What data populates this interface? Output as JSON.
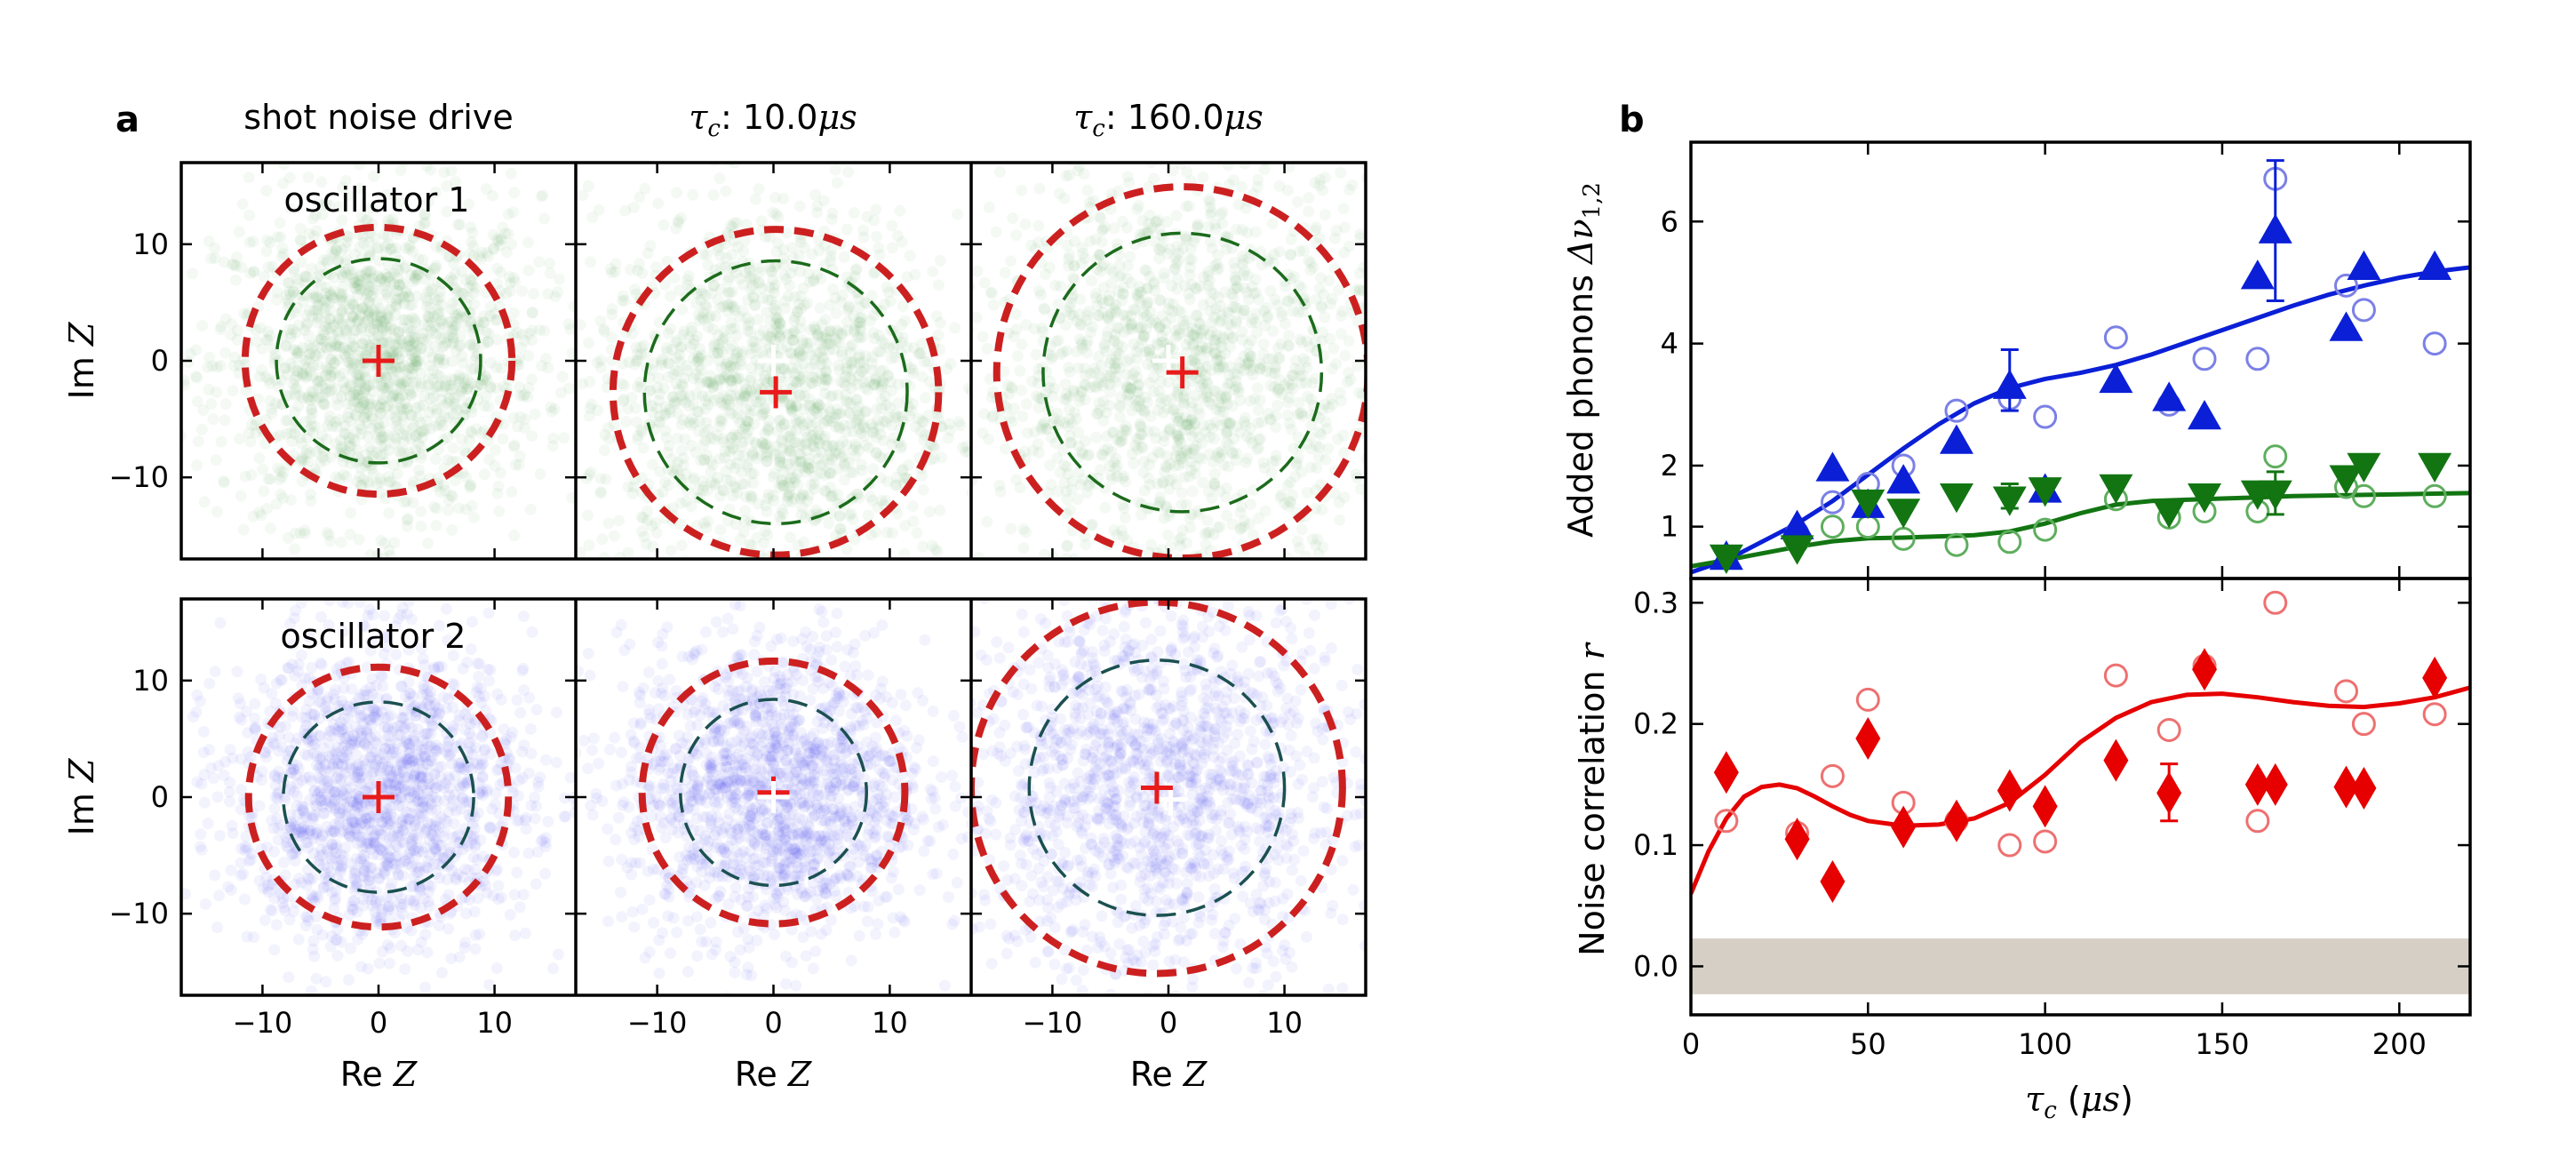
{
  "chart_data": [
    {
      "panel": "a",
      "type": "scatter",
      "title_row": [
        {
          "plain": "shot noise drive"
        },
        {
          "sym": "τ",
          "sub": "c",
          "rest": ": 10.0",
          "unit": "μs"
        },
        {
          "sym": "τ",
          "sub": "c",
          "rest": ": 160.0",
          "unit": "μs"
        }
      ],
      "row_labels": [
        "oscillator 1",
        "oscillator 2"
      ],
      "xlabel": {
        "plain": "Re ",
        "math": "Z"
      },
      "ylabel": {
        "plain": "Im ",
        "math": "Z"
      },
      "xlim": [
        -17,
        17
      ],
      "ylim": [
        -17,
        17
      ],
      "xticks": [
        -10,
        0,
        10
      ],
      "yticks": [
        -10,
        0,
        10
      ],
      "tick_labels": [
        "−10",
        "0",
        "10"
      ],
      "point_colors": [
        "#2e8b2e",
        "#3232ee"
      ],
      "circle_colors": {
        "outer": "#cc2020",
        "inner_row1": "#1b6b1b",
        "inner_row2": "#1b5050"
      },
      "subplots": [
        {
          "row": 0,
          "col": 0,
          "outer_r": 11.5,
          "inner_r": 8.8,
          "ref_center": [
            0,
            0
          ],
          "mean_center": [
            0,
            0
          ],
          "spread": 7.0
        },
        {
          "row": 0,
          "col": 1,
          "outer_r": 14.0,
          "inner_r": 11.3,
          "ref_center": [
            0,
            0
          ],
          "mean_center": [
            0.2,
            -2.7
          ],
          "spread": 8.0
        },
        {
          "row": 0,
          "col": 2,
          "outer_r": 16.0,
          "inner_r": 12.0,
          "ref_center": [
            0,
            0
          ],
          "mean_center": [
            1.2,
            -1.0
          ],
          "spread": 9.0
        },
        {
          "row": 1,
          "col": 0,
          "outer_r": 11.2,
          "inner_r": 8.2,
          "ref_center": [
            0,
            0
          ],
          "mean_center": [
            0,
            0
          ],
          "spread": 6.5
        },
        {
          "row": 1,
          "col": 1,
          "outer_r": 11.3,
          "inner_r": 8.0,
          "ref_center": [
            0,
            0
          ],
          "mean_center": [
            0,
            0.4
          ],
          "spread": 6.5
        },
        {
          "row": 1,
          "col": 2,
          "outer_r": 16.0,
          "inner_r": 11.0,
          "ref_center": [
            0.2,
            -0.2
          ],
          "mean_center": [
            -1.0,
            0.8
          ],
          "spread": 8.5
        }
      ]
    },
    {
      "panel": "b",
      "type": "scatter",
      "xlabel": {
        "sym": "τ",
        "sub": "c",
        "rest": " (",
        "unit": "μs",
        "close": ")"
      },
      "xlim": [
        0,
        220
      ],
      "xticks": [
        0,
        50,
        100,
        150,
        200
      ],
      "top": {
        "ylabel": {
          "plain": "Added phonons ",
          "sym": "Δν",
          "sub": "1,2"
        },
        "ylim": [
          0.15,
          7.3
        ],
        "yticks": [
          1,
          2,
          4,
          6
        ],
        "series": [
          {
            "name": "oscillator 1 filled",
            "marker": "triangle-up",
            "color": "#0a1fd6",
            "x": [
              10,
              30,
              40,
              50,
              60,
              75,
              90,
              100,
              120,
              135,
              145,
              160,
              165,
              185,
              190,
              210
            ],
            "y": [
              0.5,
              1.0,
              1.95,
              1.35,
              1.75,
              2.4,
              3.3,
              1.6,
              3.4,
              3.1,
              2.8,
              5.1,
              5.85,
              4.25,
              5.25,
              5.25
            ],
            "yerr": {
              "90": [
                2.9,
                3.9
              ],
              "165": [
                4.7,
                7.0
              ]
            }
          },
          {
            "name": "oscillator 1 open",
            "marker": "circle-open",
            "color": "#7b80e6",
            "x": [
              30,
              40,
              50,
              60,
              75,
              90,
              100,
              120,
              135,
              145,
              160,
              165,
              185,
              190,
              210
            ],
            "y": [
              0.9,
              1.4,
              1.7,
              2.0,
              2.9,
              3.1,
              2.8,
              4.1,
              3.0,
              3.75,
              3.75,
              6.7,
              4.95,
              4.55,
              4.0
            ]
          },
          {
            "name": "oscillator 2 filled",
            "marker": "triangle-down",
            "color": "#127512",
            "x": [
              10,
              30,
              50,
              60,
              75,
              90,
              100,
              120,
              135,
              145,
              160,
              165,
              185,
              190,
              210
            ],
            "y": [
              0.5,
              0.65,
              1.4,
              1.25,
              1.5,
              1.45,
              1.6,
              1.65,
              1.25,
              1.5,
              1.55,
              1.55,
              1.8,
              2.0,
              2.0
            ],
            "yerr": {
              "90": [
                1.3,
                1.7
              ],
              "165": [
                1.2,
                1.9
              ]
            }
          },
          {
            "name": "oscillator 2 open",
            "marker": "circle-open",
            "color": "#5eae5e",
            "x": [
              30,
              40,
              50,
              60,
              75,
              90,
              100,
              120,
              135,
              145,
              160,
              165,
              185,
              190,
              210
            ],
            "y": [
              0.75,
              1.0,
              1.0,
              0.8,
              0.7,
              0.75,
              0.95,
              1.45,
              1.15,
              1.25,
              1.25,
              2.15,
              1.65,
              1.5,
              1.5
            ]
          }
        ],
        "fits": [
          {
            "color": "#0a1fd6",
            "x": [
              0,
              10,
              20,
              30,
              40,
              50,
              60,
              70,
              80,
              90,
              100,
              110,
              120,
              130,
              140,
              150,
              160,
              170,
              180,
              190,
              200,
              210,
              220
            ],
            "y": [
              0.25,
              0.45,
              0.75,
              1.05,
              1.42,
              1.85,
              2.28,
              2.68,
              3.02,
              3.27,
              3.42,
              3.52,
              3.65,
              3.82,
              4.02,
              4.22,
              4.42,
              4.62,
              4.8,
              4.95,
              5.08,
              5.18,
              5.25
            ]
          },
          {
            "color": "#127512",
            "x": [
              0,
              10,
              20,
              30,
              40,
              50,
              60,
              70,
              80,
              90,
              100,
              110,
              120,
              130,
              140,
              150,
              160,
              170,
              180,
              190,
              200,
              210,
              220
            ],
            "y": [
              0.35,
              0.45,
              0.56,
              0.67,
              0.76,
              0.81,
              0.82,
              0.84,
              0.86,
              0.92,
              1.05,
              1.22,
              1.36,
              1.42,
              1.44,
              1.46,
              1.48,
              1.5,
              1.51,
              1.52,
              1.53,
              1.54,
              1.55
            ]
          }
        ]
      },
      "bottom": {
        "ylabel": {
          "plain": "Noise correlation ",
          "math": "r"
        },
        "ylim": [
          -0.04,
          0.32
        ],
        "yticks": [
          0.0,
          0.1,
          0.2,
          0.3
        ],
        "ytick_labels": [
          "0.0",
          "0.1",
          "0.2",
          "0.3"
        ],
        "band": {
          "y0": -0.023,
          "y1": 0.023,
          "color": "#d6cfc6"
        },
        "series": [
          {
            "name": "filled diamonds",
            "marker": "diamond",
            "color": "#e60000",
            "x": [
              10,
              30,
              40,
              50,
              60,
              75,
              90,
              100,
              120,
              135,
              145,
              160,
              165,
              185,
              190,
              210
            ],
            "y": [
              0.16,
              0.105,
              0.07,
              0.188,
              0.115,
              0.12,
              0.145,
              0.132,
              0.17,
              0.143,
              0.245,
              0.15,
              0.15,
              0.148,
              0.147,
              0.238
            ],
            "yerr": {
              "135": [
                0.12,
                0.167
              ]
            }
          },
          {
            "name": "open circles",
            "marker": "circle-open",
            "color": "#ee7070",
            "x": [
              10,
              30,
              40,
              50,
              60,
              75,
              90,
              100,
              120,
              135,
              145,
              160,
              165,
              185,
              190,
              210
            ],
            "y": [
              0.12,
              0.11,
              0.157,
              0.22,
              0.135,
              0.12,
              0.1,
              0.103,
              0.24,
              0.195,
              0.248,
              0.12,
              0.3,
              0.227,
              0.2,
              0.208
            ]
          }
        ],
        "fits": [
          {
            "color": "#e60000",
            "x": [
              0,
              5,
              10,
              15,
              20,
              25,
              30,
              35,
              40,
              45,
              50,
              60,
              70,
              80,
              90,
              100,
              110,
              120,
              130,
              140,
              150,
              160,
              170,
              180,
              190,
              200,
              210,
              220
            ],
            "y": [
              0.06,
              0.095,
              0.122,
              0.14,
              0.148,
              0.15,
              0.147,
              0.14,
              0.132,
              0.125,
              0.12,
              0.116,
              0.117,
              0.122,
              0.135,
              0.158,
              0.185,
              0.205,
              0.218,
              0.224,
              0.225,
              0.222,
              0.218,
              0.215,
              0.214,
              0.217,
              0.222,
              0.23
            ]
          }
        ]
      }
    }
  ]
}
